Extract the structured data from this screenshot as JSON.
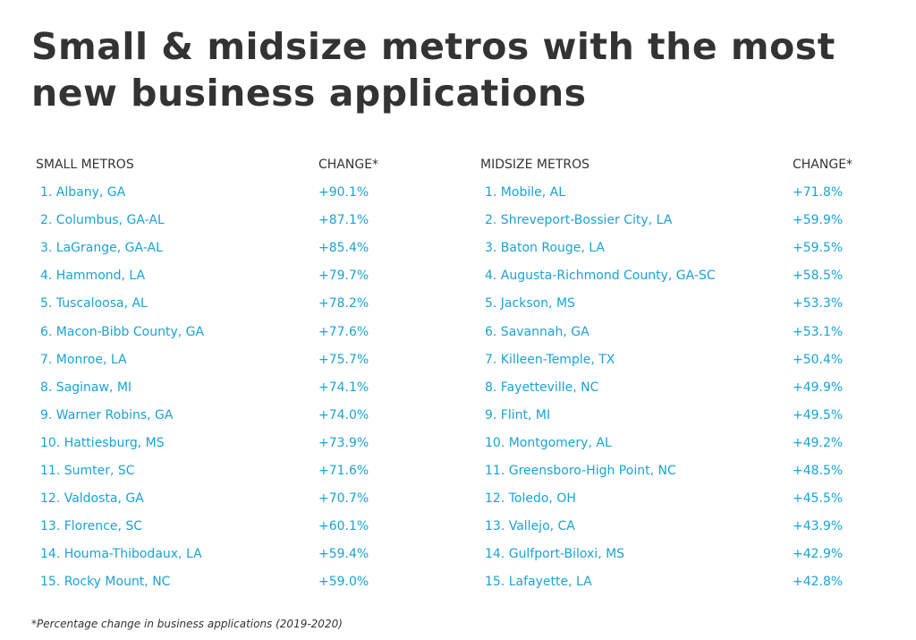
{
  "title": "Small & midsize metros with the most new business applications",
  "tables": [
    {
      "headers": [
        "SMALL METROS",
        "CHANGE*"
      ],
      "rows": [
        [
          "1. Albany, GA",
          "+90.1%"
        ],
        [
          "2. Columbus, GA-AL",
          "+87.1%"
        ],
        [
          "3. LaGrange, GA-AL",
          "+85.4%"
        ],
        [
          "4. Hammond, LA",
          "+79.7%"
        ],
        [
          "5. Tuscaloosa, AL",
          "+78.2%"
        ],
        [
          "6. Macon-Bibb County, GA",
          "+77.6%"
        ],
        [
          "7. Monroe, LA",
          "+75.7%"
        ],
        [
          "8. Saginaw, MI",
          "+74.1%"
        ],
        [
          "9. Warner Robins, GA",
          "+74.0%"
        ],
        [
          "10. Hattiesburg, MS",
          "+73.9%"
        ],
        [
          "11. Sumter, SC",
          "+71.6%"
        ],
        [
          "12. Valdosta, GA",
          "+70.7%"
        ],
        [
          "13. Florence, SC",
          "+60.1%"
        ],
        [
          "14. Houma-Thibodaux, LA",
          "+59.4%"
        ],
        [
          "15. Rocky Mount, NC",
          "+59.0%"
        ]
      ]
    },
    {
      "headers": [
        "MIDSIZE METROS",
        "CHANGE*"
      ],
      "rows": [
        [
          "1. Mobile, AL",
          "+71.8%"
        ],
        [
          "2. Shreveport-Bossier City, LA",
          "+59.9%"
        ],
        [
          "3. Baton Rouge, LA",
          "+59.5%"
        ],
        [
          "4. Augusta-Richmond County, GA-SC",
          "+58.5%"
        ],
        [
          "5. Jackson, MS",
          "+53.3%"
        ],
        [
          "6. Savannah, GA",
          "+53.1%"
        ],
        [
          "7. Killeen-Temple, TX",
          "+50.4%"
        ],
        [
          "8. Fayetteville, NC",
          "+49.9%"
        ],
        [
          "9. Flint, MI",
          "+49.5%"
        ],
        [
          "10. Montgomery, AL",
          "+49.2%"
        ],
        [
          "11. Greensboro-High Point, NC",
          "+48.5%"
        ],
        [
          "12. Toledo, OH",
          "+45.5%"
        ],
        [
          "13. Vallejo, CA",
          "+43.9%"
        ],
        [
          "14. Gulfport-Biloxi, MS",
          "+42.9%"
        ],
        [
          "15. Lafayette, LA",
          "+42.8%"
        ]
      ]
    }
  ],
  "footnote": "*Percentage change in business applications (2019-2020)"
}
